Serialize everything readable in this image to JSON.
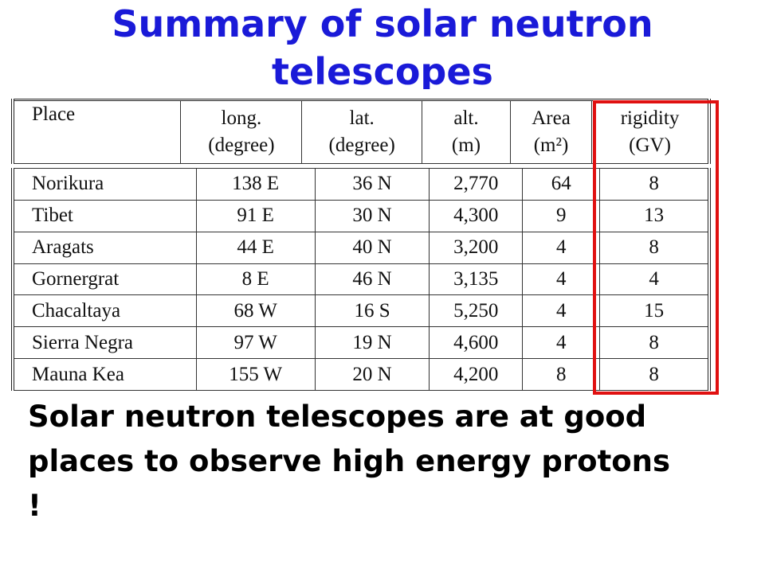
{
  "title": "Summary of solar neutron telescopes",
  "table": {
    "header": [
      [
        "Place"
      ],
      [
        "long.",
        "(degree)"
      ],
      [
        "lat.",
        "(degree)"
      ],
      [
        "alt.",
        "(m)"
      ],
      [
        "Area",
        "(m²)"
      ],
      [
        "rigidity",
        "(GV)"
      ]
    ],
    "rows": [
      [
        "Norikura",
        "138 E",
        "36 N",
        "2,770",
        "64",
        "8"
      ],
      [
        "Tibet",
        "91 E",
        "30 N",
        "4,300",
        "9",
        "13"
      ],
      [
        "Aragats",
        "44 E",
        "40 N",
        "3,200",
        "4",
        "8"
      ],
      [
        "Gornergrat",
        "8 E",
        "46 N",
        "3,135",
        "4",
        "4"
      ],
      [
        "Chacaltaya",
        "68 W",
        "16 S",
        "5,250",
        "4",
        "15"
      ],
      [
        "Sierra Negra",
        "97 W",
        "19 N",
        "4,600",
        "4",
        "8"
      ],
      [
        "Mauna Kea",
        "155 W",
        "20 N",
        "4,200",
        "8",
        "8"
      ]
    ]
  },
  "body": [
    "Solar neutron telescopes are at good",
    "places to observe high energy protons !"
  ]
}
